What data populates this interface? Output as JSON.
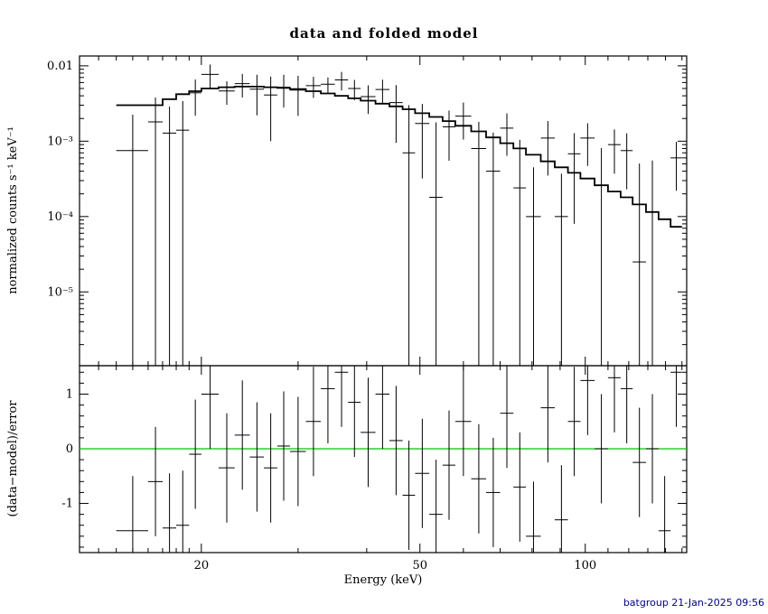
{
  "title": "data and folded model",
  "footer": "batgroup 21-Jan-2025 09:56",
  "colors": {
    "model_line": "#000000",
    "data_marks": "#000000",
    "zero_line": "#00c800",
    "footer_text": "#00008b",
    "frame": "#000000",
    "background": "#ffffff"
  },
  "chart_data": {
    "type": "line",
    "title": "data and folded model",
    "xlabel": "Energy (keV)",
    "ylabel_top": "normalized counts s⁻¹ keV⁻¹",
    "ylabel_bottom": "(data−model)/error",
    "x_scale": "log",
    "xlim": [
      12,
      153
    ],
    "xticks": [
      {
        "v": 20,
        "label": "20"
      },
      {
        "v": 50,
        "label": "50"
      },
      {
        "v": 100,
        "label": "100"
      }
    ],
    "top_panel": {
      "y_scale": "log",
      "ylim": [
        1.05e-06,
        0.0135
      ],
      "yticks": [
        {
          "v": 0.01,
          "label": "0.01"
        },
        {
          "v": 0.001,
          "label": "10⁻³"
        },
        {
          "v": 0.0001,
          "label": "10⁻⁴"
        },
        {
          "v": 1e-05,
          "label": "10⁻⁵"
        }
      ]
    },
    "bottom_panel": {
      "y_scale": "linear",
      "ylim": [
        -1.9,
        1.52
      ],
      "yticks": [
        {
          "v": 1,
          "label": "1"
        },
        {
          "v": 0,
          "label": "0"
        },
        {
          "v": -1,
          "label": "-1"
        }
      ],
      "zero_line": 0,
      "resid_error": 1
    },
    "bins": [
      {
        "e": 15.0,
        "de": 1.0,
        "model": 0.003,
        "y": 0.00075,
        "err": 0.0015,
        "resid": -1.5
      },
      {
        "e": 16.5,
        "de": 0.5,
        "model": 0.003,
        "y": 0.0018,
        "err": 0.002,
        "resid": -0.6
      },
      {
        "e": 17.5,
        "de": 0.5,
        "model": 0.0036,
        "y": 0.00128,
        "err": 0.0016,
        "resid": -1.45
      },
      {
        "e": 18.5,
        "de": 0.5,
        "model": 0.0042,
        "y": 0.0014,
        "err": 0.002,
        "resid": -1.4
      },
      {
        "e": 19.5,
        "de": 0.5,
        "model": 0.0046,
        "y": 0.00438,
        "err": 0.0022,
        "resid": -0.1
      },
      {
        "e": 20.75,
        "de": 0.75,
        "model": 0.005,
        "y": 0.0077,
        "err": 0.0027,
        "resid": 1.0
      },
      {
        "e": 22.25,
        "de": 0.75,
        "model": 0.0052,
        "y": 0.00464,
        "err": 0.0016,
        "resid": -0.35
      },
      {
        "e": 23.75,
        "de": 0.75,
        "model": 0.0053,
        "y": 0.0058,
        "err": 0.002,
        "resid": 0.25
      },
      {
        "e": 25.25,
        "de": 0.75,
        "model": 0.0053,
        "y": 0.0049,
        "err": 0.0027,
        "resid": -0.15
      },
      {
        "e": 26.75,
        "de": 0.75,
        "model": 0.0052,
        "y": 0.0041,
        "err": 0.0031,
        "resid": -0.35
      },
      {
        "e": 28.25,
        "de": 0.75,
        "model": 0.0051,
        "y": 0.0052,
        "err": 0.0024,
        "resid": 0.05
      },
      {
        "e": 30.0,
        "de": 1.0,
        "model": 0.0049,
        "y": 0.00477,
        "err": 0.0026,
        "resid": -0.05
      },
      {
        "e": 32.0,
        "de": 1.0,
        "model": 0.0046,
        "y": 0.00545,
        "err": 0.0017,
        "resid": 0.5
      },
      {
        "e": 34.0,
        "de": 1.0,
        "model": 0.0043,
        "y": 0.0057,
        "err": 0.0013,
        "resid": 1.1
      },
      {
        "e": 36.0,
        "de": 1.0,
        "model": 0.004,
        "y": 0.0065,
        "err": 0.0018,
        "resid": 1.4
      },
      {
        "e": 38.0,
        "de": 1.0,
        "model": 0.0037,
        "y": 0.005,
        "err": 0.0015,
        "resid": 0.85
      },
      {
        "e": 40.25,
        "de": 1.25,
        "model": 0.00345,
        "y": 0.0039,
        "err": 0.0016,
        "resid": 0.3
      },
      {
        "e": 42.75,
        "de": 1.25,
        "model": 0.00315,
        "y": 0.00485,
        "err": 0.0017,
        "resid": 1.0
      },
      {
        "e": 45.25,
        "de": 1.25,
        "model": 0.0029,
        "y": 0.00325,
        "err": 0.0023,
        "resid": 0.15
      },
      {
        "e": 47.75,
        "de": 1.25,
        "model": 0.00265,
        "y": 0.0007,
        "err": 0.0023,
        "resid": -0.85
      },
      {
        "e": 50.5,
        "de": 1.5,
        "model": 0.00235,
        "y": 0.00172,
        "err": 0.0014,
        "resid": -0.45
      },
      {
        "e": 53.5,
        "de": 1.5,
        "model": 0.0021,
        "y": 0.00018,
        "err": 0.0016,
        "resid": -1.2
      },
      {
        "e": 56.5,
        "de": 1.5,
        "model": 0.00185,
        "y": 0.00155,
        "err": 0.001,
        "resid": -0.3
      },
      {
        "e": 60.0,
        "de": 2.0,
        "model": 0.0016,
        "y": 0.00215,
        "err": 0.0011,
        "resid": 0.5
      },
      {
        "e": 64.0,
        "de": 2.0,
        "model": 0.00135,
        "y": 0.0008,
        "err": 0.001,
        "resid": -0.55
      },
      {
        "e": 68.0,
        "de": 2.0,
        "model": 0.00112,
        "y": 0.0004,
        "err": 0.0009,
        "resid": -0.8
      },
      {
        "e": 72.0,
        "de": 2.0,
        "model": 0.00094,
        "y": 0.00149,
        "err": 0.00085,
        "resid": 0.65
      },
      {
        "e": 76.0,
        "de": 2.0,
        "model": 0.0008,
        "y": 0.00024,
        "err": 0.0008,
        "resid": -0.7
      },
      {
        "e": 80.5,
        "de": 2.5,
        "model": 0.00066,
        "y": 0.0001,
        "err": 0.00035,
        "resid": -1.6
      },
      {
        "e": 85.5,
        "de": 2.5,
        "model": 0.00054,
        "y": 0.0011,
        "err": 0.00075,
        "resid": 0.75
      },
      {
        "e": 90.5,
        "de": 2.5,
        "model": 0.00045,
        "y": 0.0001,
        "err": 0.00027,
        "resid": -1.3
      },
      {
        "e": 95.5,
        "de": 2.5,
        "model": 0.00038,
        "y": 0.00068,
        "err": 0.0006,
        "resid": 0.5
      },
      {
        "e": 101.0,
        "de": 3.0,
        "model": 0.00032,
        "y": 0.0011,
        "err": 0.00063,
        "resid": 1.25
      },
      {
        "e": 107.0,
        "de": 3.0,
        "model": 0.00026,
        "y": 0.00026,
        "err": 0.00055,
        "resid": 0.0
      },
      {
        "e": 113.0,
        "de": 3.0,
        "model": 0.000215,
        "y": 0.0009,
        "err": 0.00053,
        "resid": 1.3
      },
      {
        "e": 119.0,
        "de": 3.0,
        "model": 0.00018,
        "y": 0.00075,
        "err": 0.00052,
        "resid": 1.1
      },
      {
        "e": 125.5,
        "de": 3.5,
        "model": 0.000145,
        "y": 2.5e-05,
        "err": 0.00048,
        "resid": -0.25
      },
      {
        "e": 132.5,
        "de": 3.5,
        "model": 0.000115,
        "y": 0.000115,
        "err": 0.00044,
        "resid": 0.0
      },
      {
        "e": 139.5,
        "de": 3.5,
        "model": 9.2e-05,
        "y": -0.00042,
        "err": 0.00034,
        "resid": -1.5
      },
      {
        "e": 146.5,
        "de": 3.5,
        "model": 7.3e-05,
        "y": 0.0006,
        "err": 0.00038,
        "resid": 1.4
      }
    ]
  }
}
